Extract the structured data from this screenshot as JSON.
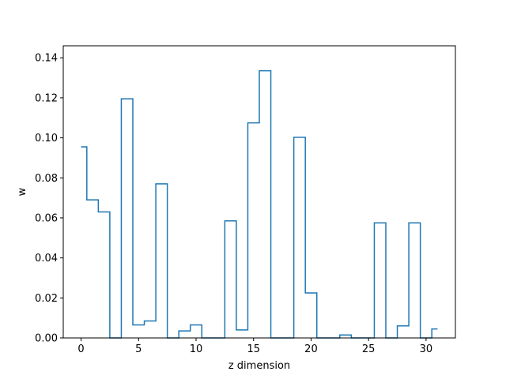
{
  "chart_data": {
    "type": "line",
    "style": "step",
    "title": "",
    "xlabel": "z dimension",
    "ylabel": "w",
    "xlim": [
      -1.55,
      32.55
    ],
    "ylim": [
      0,
      0.146
    ],
    "grid": false,
    "x_ticks": [
      0,
      5,
      10,
      15,
      20,
      25,
      30
    ],
    "y_ticks": [
      0.0,
      0.02,
      0.04,
      0.06,
      0.08,
      0.1,
      0.12,
      0.14
    ],
    "y_tick_labels": [
      "0.00",
      "0.02",
      "0.04",
      "0.06",
      "0.08",
      "0.10",
      "0.12",
      "0.14"
    ],
    "series": [
      {
        "color": "#1f77b4",
        "x": [
          0,
          1,
          2,
          3,
          4,
          5,
          6,
          7,
          8,
          9,
          10,
          11,
          12,
          13,
          14,
          15,
          16,
          17,
          18,
          19,
          20,
          21,
          22,
          23,
          24,
          25,
          26,
          27,
          28,
          29,
          30,
          31
        ],
        "values": [
          0.0955,
          0.069,
          0.063,
          0.0,
          0.1195,
          0.0065,
          0.0085,
          0.077,
          0.0,
          0.0035,
          0.0065,
          0.0,
          0.0,
          0.0585,
          0.004,
          0.1075,
          0.1335,
          0.0,
          0.0,
          0.1003,
          0.0225,
          0.0,
          0.0,
          0.0015,
          0.0,
          0.0,
          0.0575,
          0.0,
          0.006,
          0.0575,
          0.0,
          0.0045
        ]
      }
    ]
  }
}
